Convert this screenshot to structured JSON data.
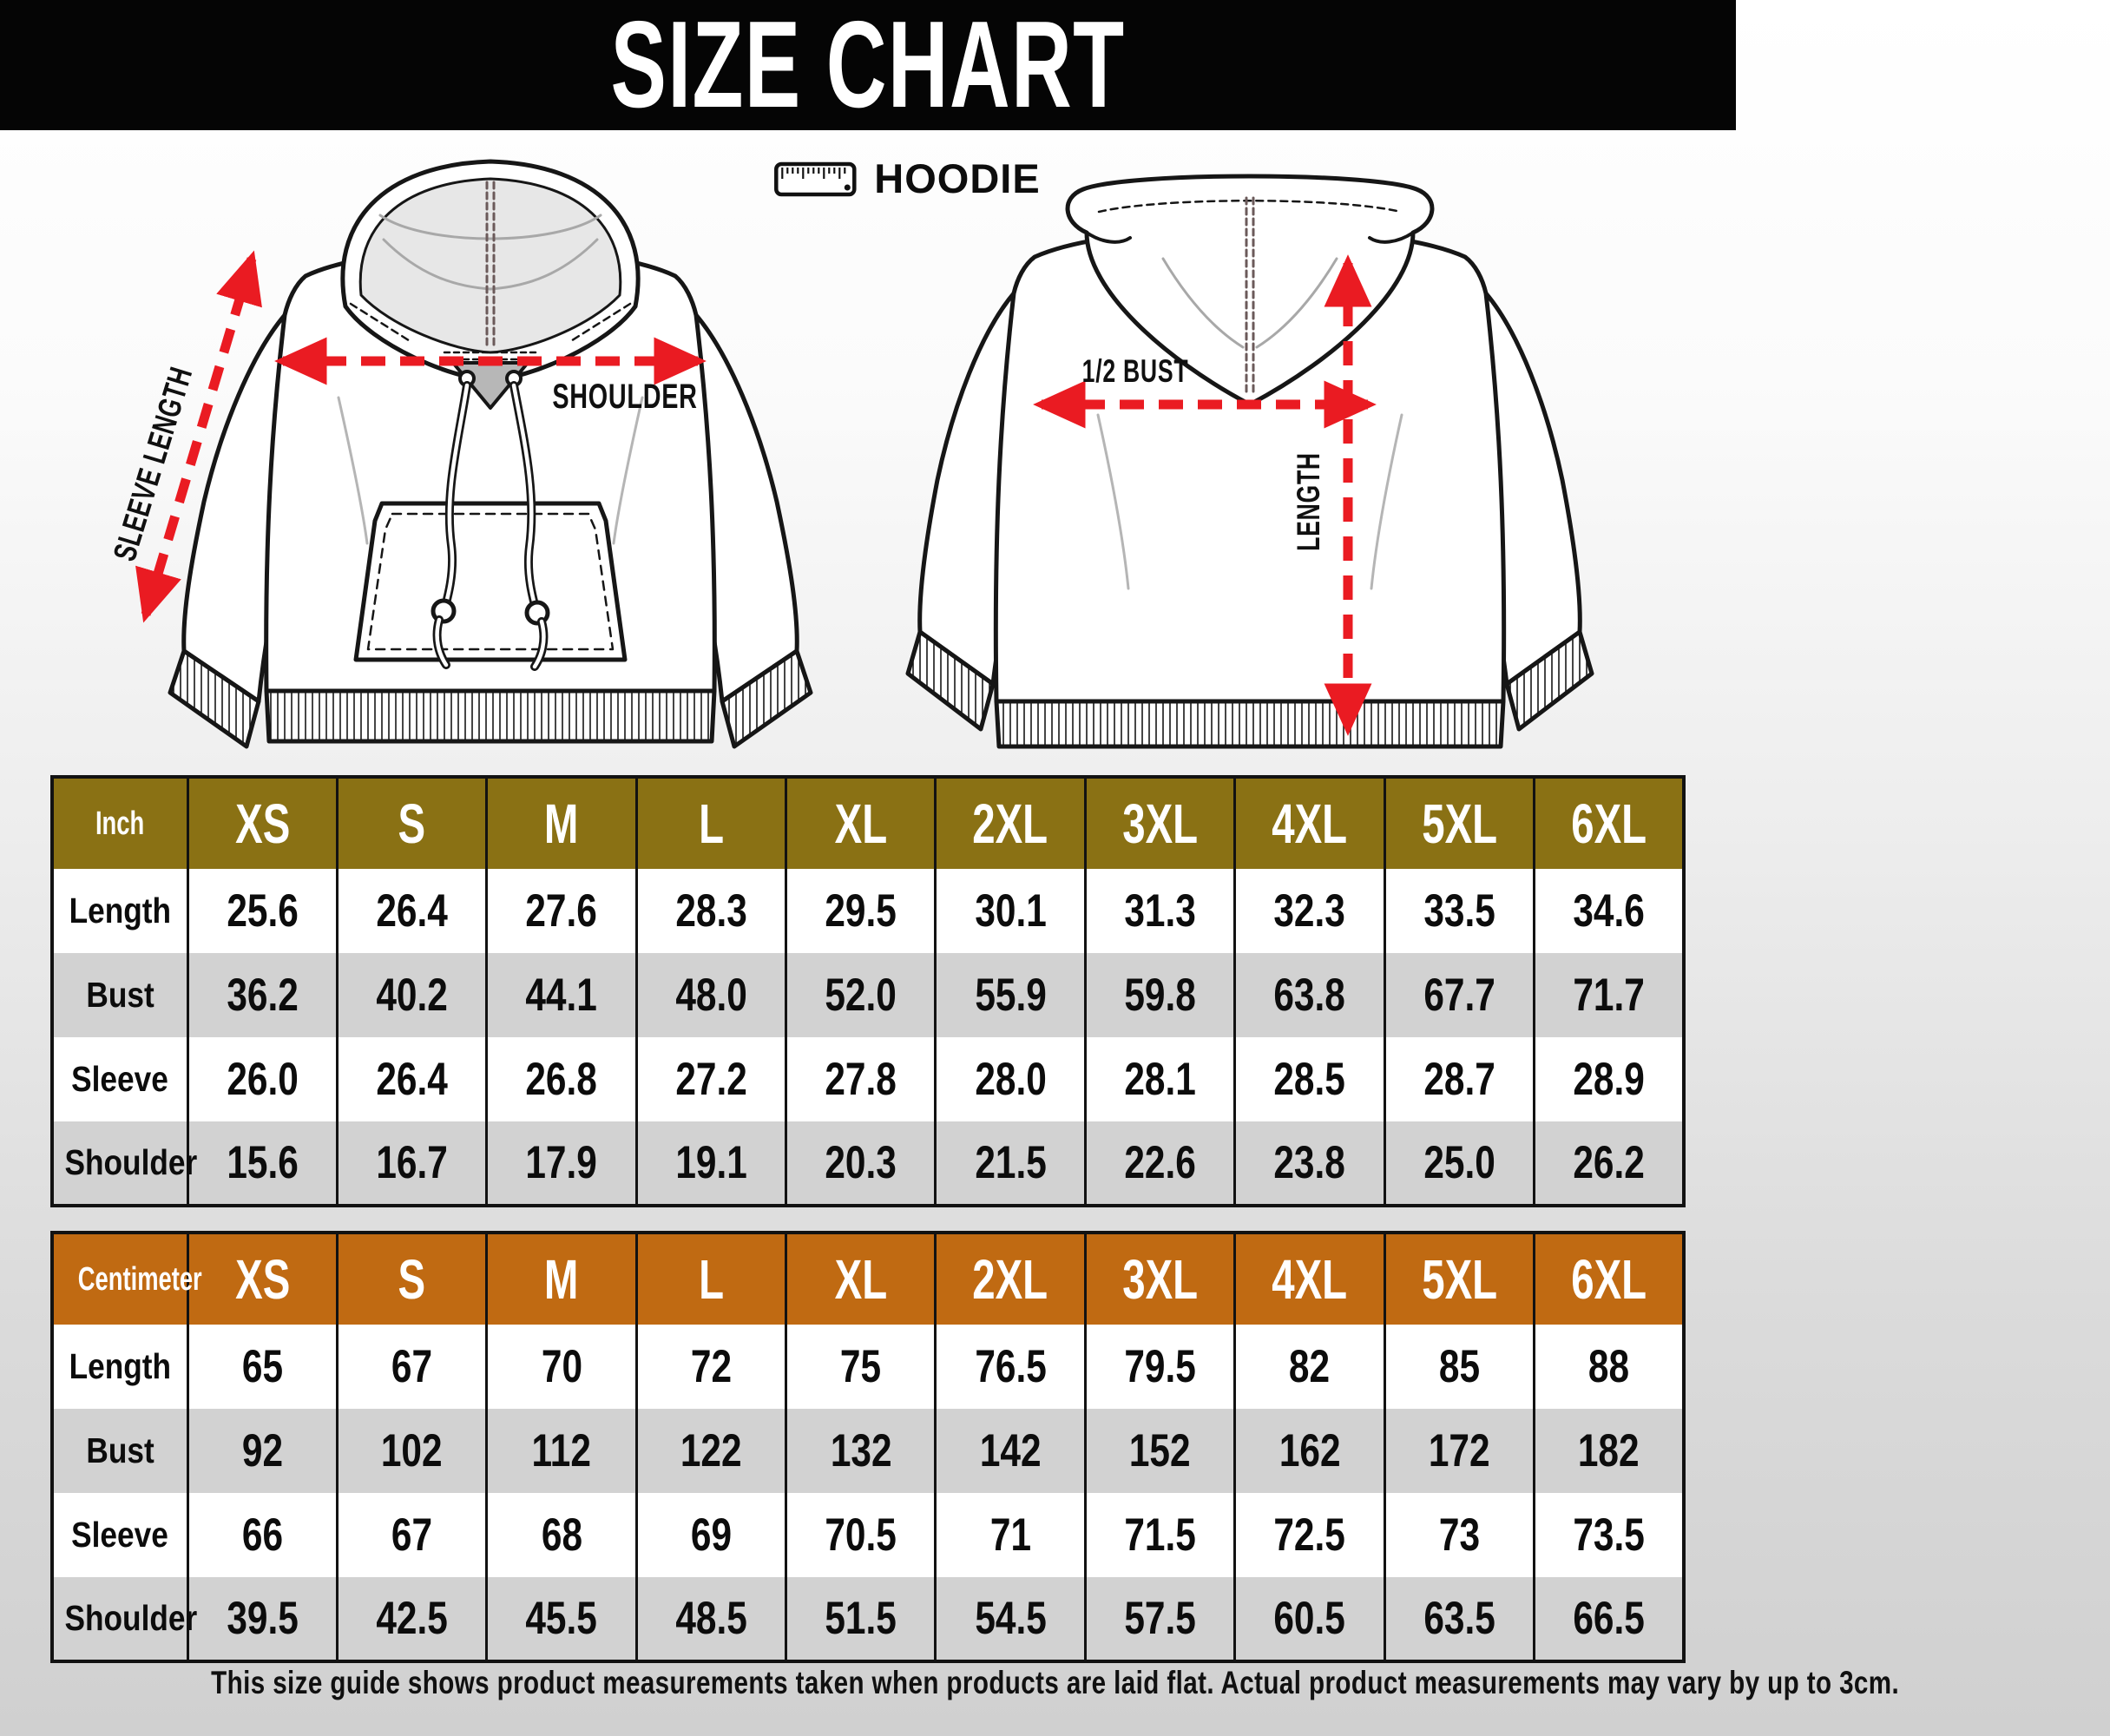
{
  "title": "SIZE CHART",
  "product_label": "HOODIE",
  "diagram": {
    "front": {
      "sleeve_arrow_label": "SLEEVE LENGTH",
      "shoulder_arrow_label": "SHOULDER"
    },
    "back": {
      "bust_arrow_label": "1/2 BUST",
      "length_arrow_label": "LENGTH"
    }
  },
  "colors": {
    "banner_bg": "#050505",
    "inch_header_bg": "#8a7114",
    "cm_header_bg": "#c06a12",
    "row_alt_bg": "#d2d2d2",
    "arrow_red": "#ea1b22"
  },
  "chart_data": [
    {
      "type": "table",
      "title": "Inch",
      "columns": [
        "XS",
        "S",
        "M",
        "L",
        "XL",
        "2XL",
        "3XL",
        "4XL",
        "5XL",
        "6XL"
      ],
      "rows": [
        {
          "label": "Length",
          "values": [
            "25.6",
            "26.4",
            "27.6",
            "28.3",
            "29.5",
            "30.1",
            "31.3",
            "32.3",
            "33.5",
            "34.6"
          ]
        },
        {
          "label": "Bust",
          "values": [
            "36.2",
            "40.2",
            "44.1",
            "48.0",
            "52.0",
            "55.9",
            "59.8",
            "63.8",
            "67.7",
            "71.7"
          ]
        },
        {
          "label": "Sleeve",
          "values": [
            "26.0",
            "26.4",
            "26.8",
            "27.2",
            "27.8",
            "28.0",
            "28.1",
            "28.5",
            "28.7",
            "28.9"
          ]
        },
        {
          "label": "Shoulder",
          "values": [
            "15.6",
            "16.7",
            "17.9",
            "19.1",
            "20.3",
            "21.5",
            "22.6",
            "23.8",
            "25.0",
            "26.2"
          ]
        }
      ]
    },
    {
      "type": "table",
      "title": "Centimeter",
      "columns": [
        "XS",
        "S",
        "M",
        "L",
        "XL",
        "2XL",
        "3XL",
        "4XL",
        "5XL",
        "6XL"
      ],
      "rows": [
        {
          "label": "Length",
          "values": [
            "65",
            "67",
            "70",
            "72",
            "75",
            "76.5",
            "79.5",
            "82",
            "85",
            "88"
          ]
        },
        {
          "label": "Bust",
          "values": [
            "92",
            "102",
            "112",
            "122",
            "132",
            "142",
            "152",
            "162",
            "172",
            "182"
          ]
        },
        {
          "label": "Sleeve",
          "values": [
            "66",
            "67",
            "68",
            "69",
            "70.5",
            "71",
            "71.5",
            "72.5",
            "73",
            "73.5"
          ]
        },
        {
          "label": "Shoulder",
          "values": [
            "39.5",
            "42.5",
            "45.5",
            "48.5",
            "51.5",
            "54.5",
            "57.5",
            "60.5",
            "63.5",
            "66.5"
          ]
        }
      ]
    }
  ],
  "footer_note": "This size guide shows product measurements taken when products are laid flat. Actual product measurements may vary by up to 3cm."
}
